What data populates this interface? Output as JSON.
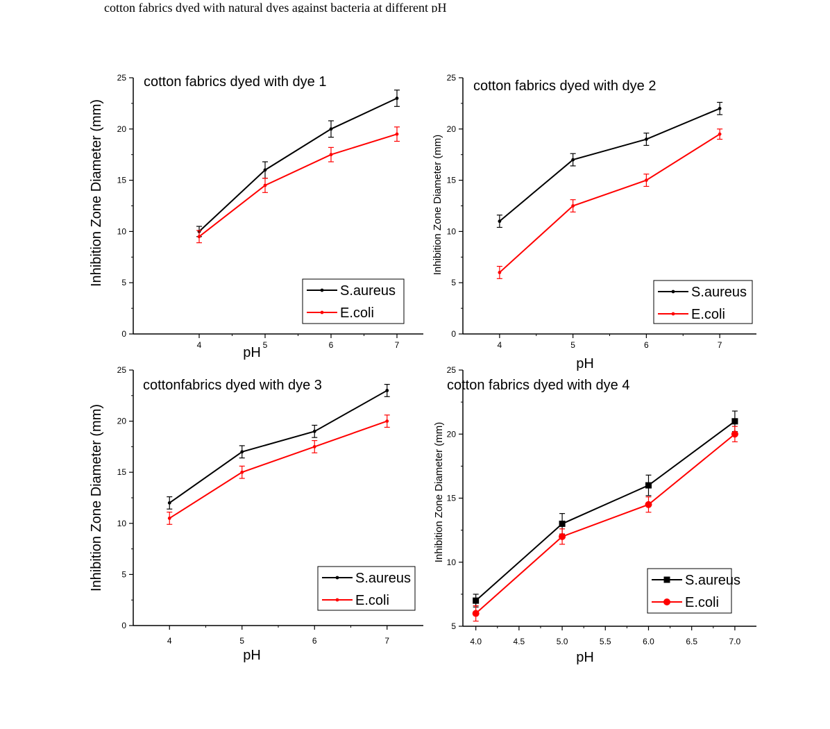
{
  "figure": {
    "top_caption": "cotton fabrics dyed with natural dyes against bacteria at different pH"
  },
  "colors": {
    "saureus": "#000000",
    "ecoli": "#ff0000",
    "axis": "#000000"
  },
  "chart_data": [
    {
      "type": "line",
      "title": "cotton fabrics dyed with dye 1",
      "xlabel": "pH",
      "ylabel": "Inhibition Zone Diameter (mm)",
      "x": [
        4,
        5,
        6,
        7
      ],
      "xlim": [
        3,
        7.4
      ],
      "ylim": [
        0,
        25
      ],
      "xticks": [
        "4",
        "5",
        "6",
        "7"
      ],
      "yticks": [
        "0",
        "5",
        "10",
        "15",
        "20",
        "25"
      ],
      "legend_position": "bottom-right",
      "marker": "small",
      "series": [
        {
          "name": "S.aureus",
          "color": "#000000",
          "values": [
            10,
            16,
            20,
            23
          ],
          "errors": [
            0.5,
            0.8,
            0.8,
            0.8
          ]
        },
        {
          "name": "E.coli",
          "color": "#ff0000",
          "values": [
            9.5,
            14.5,
            17.5,
            19.5
          ],
          "errors": [
            0.6,
            0.7,
            0.7,
            0.7
          ]
        }
      ]
    },
    {
      "type": "line",
      "title": "cotton fabrics dyed with dye 2",
      "xlabel": "pH",
      "ylabel": "Inhibition Zone Diameter (mm)",
      "x": [
        4,
        5,
        6,
        7
      ],
      "xlim": [
        3.5,
        7.5
      ],
      "ylim": [
        0,
        25
      ],
      "xticks": [
        "4",
        "5",
        "6",
        "7"
      ],
      "yticks": [
        "0",
        "5",
        "10",
        "15",
        "20",
        "25"
      ],
      "legend_position": "bottom-right",
      "marker": "small",
      "series": [
        {
          "name": "S.aureus",
          "color": "#000000",
          "values": [
            11,
            17,
            19,
            22
          ],
          "errors": [
            0.6,
            0.6,
            0.6,
            0.6
          ]
        },
        {
          "name": "E.coli",
          "color": "#ff0000",
          "values": [
            6,
            12.5,
            15,
            19.5
          ],
          "errors": [
            0.6,
            0.6,
            0.6,
            0.5
          ]
        }
      ]
    },
    {
      "type": "line",
      "title": "cottonfabrics dyed with dye 3",
      "xlabel": "pH",
      "ylabel": "Inhibition Zone Diameter (mm)",
      "x": [
        4,
        5,
        6,
        7
      ],
      "xlim": [
        3.5,
        7.5
      ],
      "ylim": [
        0,
        25
      ],
      "xticks": [
        "4",
        "5",
        "6",
        "7"
      ],
      "yticks": [
        "0",
        "5",
        "10",
        "15",
        "20",
        "25"
      ],
      "legend_position": "bottom-right",
      "marker": "small",
      "series": [
        {
          "name": "S.aureus",
          "color": "#000000",
          "values": [
            12,
            17,
            19,
            23
          ],
          "errors": [
            0.6,
            0.6,
            0.6,
            0.6
          ]
        },
        {
          "name": "E.coli",
          "color": "#ff0000",
          "values": [
            10.5,
            15,
            17.5,
            20
          ],
          "errors": [
            0.6,
            0.6,
            0.6,
            0.6
          ]
        }
      ]
    },
    {
      "type": "line",
      "title": "cotton fabrics dyed with dye 4",
      "xlabel": "pH",
      "ylabel": "Inhibition Zone Diameter (mm)",
      "x": [
        4,
        5,
        6,
        7
      ],
      "xlim": [
        3.85,
        7.25
      ],
      "ylim": [
        5,
        25
      ],
      "xticks": [
        "4.0",
        "4.5",
        "5.0",
        "5.5",
        "6.0",
        "6.5",
        "7.0"
      ],
      "yticks": [
        "5",
        "10",
        "15",
        "20",
        "25"
      ],
      "legend_position": "bottom-right",
      "marker": "large",
      "series": [
        {
          "name": "S.aureus",
          "color": "#000000",
          "values": [
            7,
            13,
            16,
            21
          ],
          "errors": [
            0.5,
            0.8,
            0.8,
            0.8
          ]
        },
        {
          "name": "E.coli",
          "color": "#ff0000",
          "values": [
            6,
            12,
            14.5,
            20
          ],
          "errors": [
            0.6,
            0.6,
            0.6,
            0.6
          ]
        }
      ]
    }
  ]
}
